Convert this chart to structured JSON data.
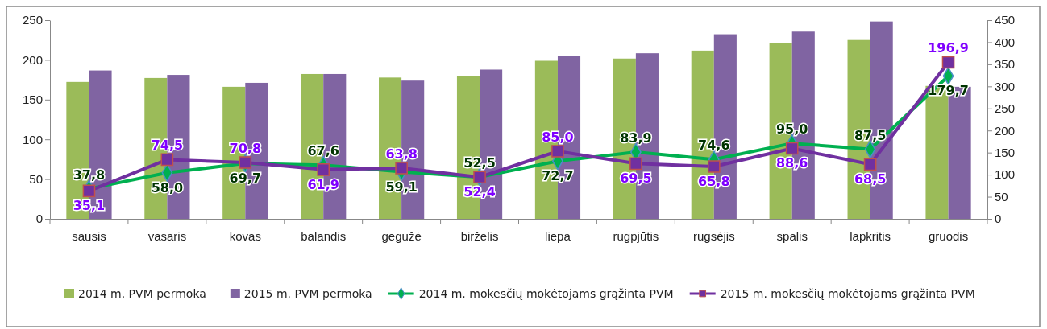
{
  "chart_data": {
    "type": "bar",
    "categories": [
      "sausis",
      "vasaris",
      "kovas",
      "balandis",
      "gegužė",
      "birželis",
      "liepa",
      "rugpjūtis",
      "rugsėjis",
      "spalis",
      "lapkritis",
      "gruodis"
    ],
    "series": [
      {
        "name": "2014 m. PVM permoka",
        "color": "#9bbb59",
        "axis": "y2",
        "values": [
          310,
          319,
          299,
          328,
          320,
          324,
          358,
          363,
          381,
          399,
          405,
          301
        ]
      },
      {
        "name": "2015 m. PVM permoka",
        "color": "#8064a2",
        "axis": "y2",
        "values": [
          336,
          326,
          308,
          328,
          313,
          338,
          368,
          375,
          418,
          424,
          447,
          299
        ]
      },
      {
        "name": "2014 m. mokesčių mokėtojams grąžinta PVM",
        "type": "line",
        "color": "#00b050",
        "marker": "diamond",
        "values": [
          37.8,
          58.0,
          69.7,
          67.6,
          59.1,
          52.5,
          72.7,
          83.9,
          74.6,
          95.0,
          87.5,
          179.7
        ],
        "value_labels": [
          "37,8",
          "58,0",
          "69,7",
          "67,6",
          "59,1",
          "52,5",
          "72,7",
          "83,9",
          "74,6",
          "95,0",
          "87,5",
          "179,7"
        ]
      },
      {
        "name": "2015 m. mokesčių mokėtojams grąžinta PVM",
        "type": "line",
        "color": "#7030a0",
        "marker": "square",
        "values": [
          35.1,
          74.5,
          70.8,
          61.9,
          63.8,
          52.4,
          85.0,
          69.5,
          65.8,
          88.6,
          68.5,
          196.9
        ],
        "value_labels": [
          "35,1",
          "74,5",
          "70,8",
          "61,9",
          "63,8",
          "52,4",
          "85,0",
          "69,5",
          "65,8",
          "88,6",
          "68,5",
          "196,9"
        ]
      }
    ],
    "ylim": [
      0,
      250
    ],
    "yticks": [
      0,
      50,
      100,
      150,
      200,
      250
    ],
    "y2lim": [
      0,
      450
    ],
    "y2ticks": [
      0,
      50,
      100,
      150,
      200,
      250,
      300,
      350,
      400,
      450
    ],
    "grid": false,
    "legend": "bottom"
  }
}
